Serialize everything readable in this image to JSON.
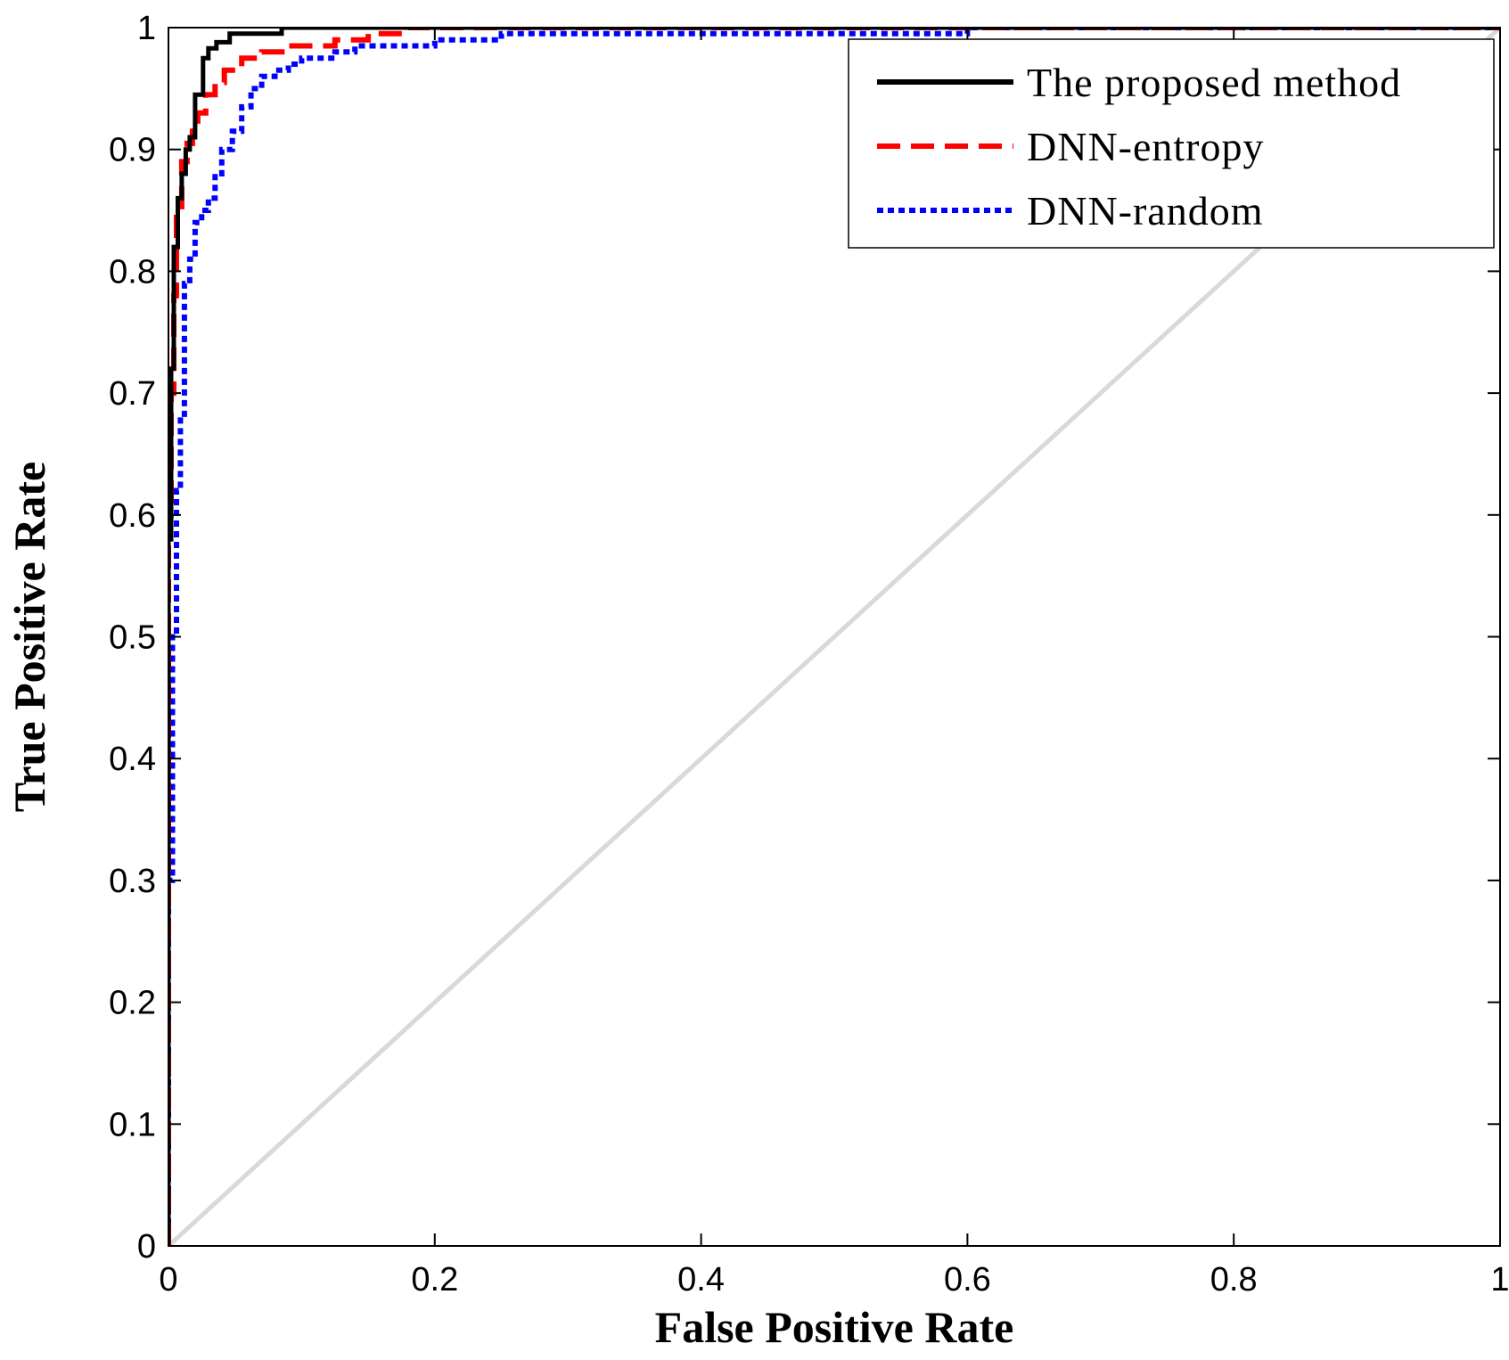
{
  "chart_data": {
    "type": "line",
    "title": "",
    "xlabel": "False Positive Rate",
    "ylabel": "True Positive Rate",
    "xlim": [
      0,
      1
    ],
    "ylim": [
      0,
      1
    ],
    "xticks": [
      0,
      0.2,
      0.4,
      0.6,
      0.8,
      1
    ],
    "xtick_labels": [
      "0",
      "0.2",
      "0.4",
      "0.6",
      "0.8",
      "1"
    ],
    "yticks": [
      0,
      0.1,
      0.2,
      0.3,
      0.4,
      0.5,
      0.6,
      0.7,
      0.8,
      0.9,
      1
    ],
    "ytick_labels": [
      "0",
      "0.1",
      "0.2",
      "0.3",
      "0.4",
      "0.5",
      "0.6",
      "0.7",
      "0.8",
      "0.9",
      "1"
    ],
    "grid": false,
    "legend_position": "top-right",
    "reference_line": {
      "name": "chance",
      "x": [
        0,
        1
      ],
      "y": [
        0,
        1
      ],
      "color": "#d9d9d9"
    },
    "series": [
      {
        "name": "The proposed method",
        "color": "#000000",
        "style": "solid",
        "x": [
          0,
          0,
          0.002,
          0.002,
          0.004,
          0.004,
          0.007,
          0.007,
          0.01,
          0.01,
          0.013,
          0.013,
          0.016,
          0.016,
          0.02,
          0.02,
          0.026,
          0.026,
          0.03,
          0.03,
          0.036,
          0.036,
          0.046,
          0.046,
          0.085,
          0.085,
          1
        ],
        "y": [
          0,
          0.58,
          0.58,
          0.72,
          0.72,
          0.82,
          0.82,
          0.86,
          0.86,
          0.88,
          0.88,
          0.9,
          0.9,
          0.91,
          0.91,
          0.945,
          0.945,
          0.975,
          0.975,
          0.983,
          0.983,
          0.988,
          0.988,
          0.995,
          0.995,
          1.0,
          1.0
        ]
      },
      {
        "name": "DNN-entropy",
        "color": "#ff0000",
        "style": "dashed",
        "x": [
          0,
          0,
          0.002,
          0.002,
          0.004,
          0.004,
          0.006,
          0.006,
          0.01,
          0.01,
          0.014,
          0.014,
          0.018,
          0.018,
          0.022,
          0.022,
          0.028,
          0.028,
          0.035,
          0.035,
          0.042,
          0.042,
          0.055,
          0.055,
          0.07,
          0.07,
          0.09,
          0.09,
          0.125,
          0.125,
          0.15,
          0.15,
          0.18,
          0.18,
          1
        ],
        "y": [
          0,
          0.6,
          0.6,
          0.7,
          0.7,
          0.78,
          0.78,
          0.85,
          0.85,
          0.89,
          0.89,
          0.905,
          0.905,
          0.915,
          0.915,
          0.93,
          0.93,
          0.945,
          0.945,
          0.955,
          0.955,
          0.965,
          0.965,
          0.975,
          0.975,
          0.98,
          0.98,
          0.985,
          0.985,
          0.99,
          0.99,
          0.995,
          0.995,
          1.0,
          1.0
        ]
      },
      {
        "name": "DNN-random",
        "color": "#0000ff",
        "style": "dotted",
        "x": [
          0,
          0,
          0.003,
          0.003,
          0.006,
          0.006,
          0.009,
          0.009,
          0.012,
          0.012,
          0.016,
          0.016,
          0.02,
          0.02,
          0.025,
          0.025,
          0.03,
          0.03,
          0.035,
          0.035,
          0.04,
          0.04,
          0.048,
          0.048,
          0.055,
          0.055,
          0.062,
          0.062,
          0.07,
          0.07,
          0.08,
          0.08,
          0.09,
          0.09,
          0.1,
          0.1,
          0.125,
          0.125,
          0.14,
          0.14,
          0.2,
          0.2,
          0.25,
          0.25,
          0.6,
          0.6,
          1
        ],
        "y": [
          0,
          0.3,
          0.3,
          0.5,
          0.5,
          0.62,
          0.62,
          0.68,
          0.68,
          0.79,
          0.79,
          0.81,
          0.81,
          0.84,
          0.84,
          0.85,
          0.85,
          0.86,
          0.86,
          0.88,
          0.88,
          0.9,
          0.9,
          0.915,
          0.915,
          0.935,
          0.935,
          0.95,
          0.95,
          0.96,
          0.96,
          0.965,
          0.965,
          0.97,
          0.97,
          0.975,
          0.975,
          0.98,
          0.98,
          0.985,
          0.985,
          0.99,
          0.99,
          0.995,
          0.995,
          1.0,
          1.0
        ]
      }
    ]
  }
}
